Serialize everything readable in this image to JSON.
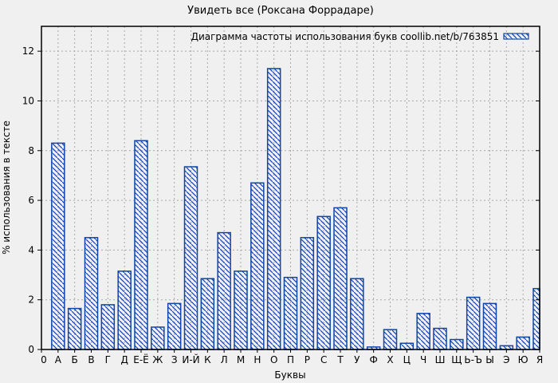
{
  "chart_data": {
    "type": "bar",
    "title": "Увидеть все (Роксана Форрадаре)",
    "legend": "Диаграмма частоты использования букв coollib.net/b/763851",
    "legend_position": "top-right-inside",
    "xlabel": "Буквы",
    "ylabel": "% использования в тексте",
    "origin_label": "0",
    "ylim": [
      0,
      13
    ],
    "ytick_step": 2,
    "ytick_max": 12,
    "grid": true,
    "hatch_style": "diagonal-backslash",
    "colors": {
      "bar": "#0f45a8",
      "background": "#f0f0f0",
      "grid": "#a8a8a8",
      "text": "#000000"
    },
    "categories": [
      "А",
      "Б",
      "В",
      "Г",
      "Д",
      "Е-Ё",
      "Ж",
      "З",
      "И-Й",
      "К",
      "Л",
      "М",
      "Н",
      "О",
      "П",
      "Р",
      "С",
      "Т",
      "У",
      "Ф",
      "Х",
      "Ц",
      "Ч",
      "Ш",
      "Щ",
      "Ь-Ъ",
      "Ы",
      "Э",
      "Ю",
      "Я"
    ],
    "values": [
      8.3,
      1.65,
      4.5,
      1.8,
      3.15,
      8.4,
      0.9,
      1.85,
      7.35,
      2.85,
      4.7,
      3.15,
      6.7,
      11.3,
      2.9,
      4.5,
      5.35,
      5.7,
      2.85,
      0.1,
      0.8,
      0.25,
      1.45,
      0.85,
      0.4,
      2.1,
      1.85,
      0.15,
      0.5,
      2.45
    ]
  }
}
